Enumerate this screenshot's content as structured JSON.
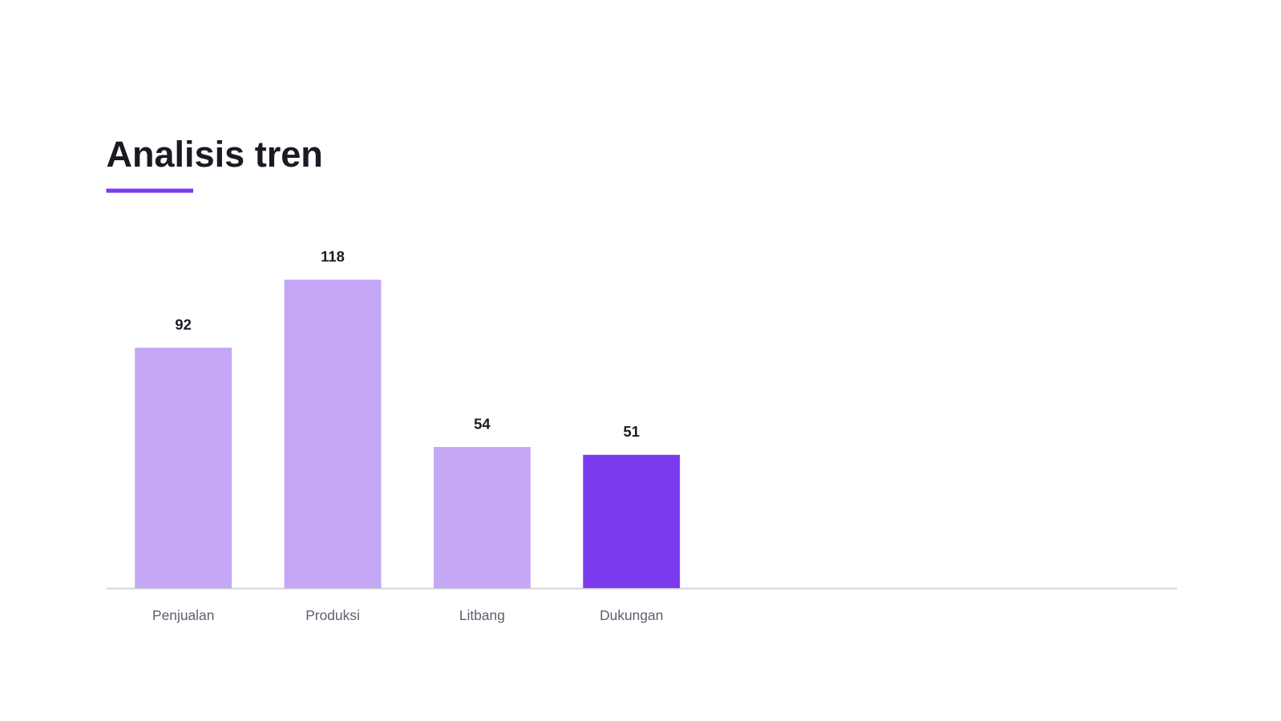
{
  "chart_data": {
    "type": "bar",
    "title": "Analisis tren",
    "categories": [
      "Penjualan",
      "Produksi",
      "Litbang",
      "Dukungan"
    ],
    "values": [
      92,
      118,
      54,
      51
    ],
    "colors": [
      "#c4a8f5",
      "#c4a8f5",
      "#c4a8f5",
      "#7c3aed"
    ],
    "accent_color": "#7c3aed"
  }
}
